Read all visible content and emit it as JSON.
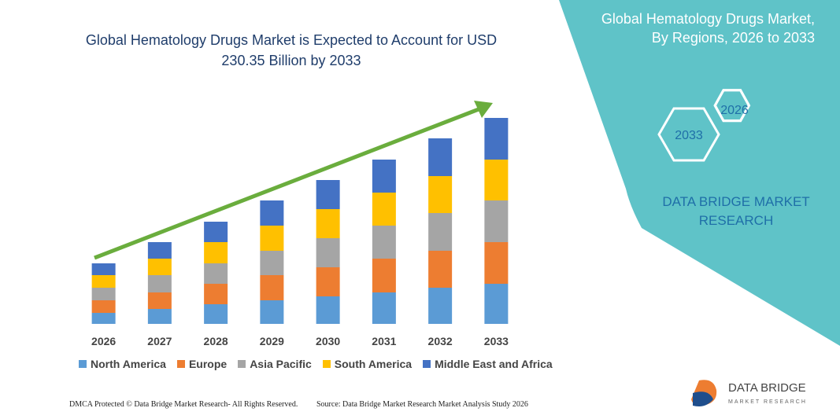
{
  "chart_data": {
    "type": "stacked_bar",
    "title": "Global Hematology Drugs Market is Expected to Account for USD 230.35 Billion by 2033",
    "categories": [
      "2026",
      "2027",
      "2028",
      "2029",
      "2030",
      "2031",
      "2032",
      "2033"
    ],
    "series": [
      {
        "name": "North America",
        "color": "#5b9bd5",
        "values": [
          14,
          19,
          25,
          30,
          35,
          40,
          46,
          51
        ]
      },
      {
        "name": "Europe",
        "color": "#ed7d31",
        "values": [
          16,
          21,
          26,
          32,
          37,
          43,
          47,
          53
        ]
      },
      {
        "name": "Asia Pacific",
        "color": "#a5a5a5",
        "values": [
          16,
          22,
          26,
          31,
          37,
          42,
          48,
          53
        ]
      },
      {
        "name": "South America",
        "color": "#ffc000",
        "values": [
          16,
          21,
          27,
          32,
          37,
          42,
          47,
          52
        ]
      },
      {
        "name": "Middle East and Africa",
        "color": "#4472c4",
        "values": [
          15,
          21,
          26,
          32,
          37,
          42,
          48,
          53
        ]
      }
    ],
    "legend": "bottom"
  },
  "side_panel": {
    "title": "Global Hematology Drugs Market, By Regions, 2026 to 2033",
    "hexagons": [
      "2026",
      "2033"
    ],
    "brand": "DATA BRIDGE MARKET RESEARCH"
  },
  "footer": {
    "left": "DMCA Protected © Data Bridge Market Research- All Rights Reserved.",
    "right": "Source: Data Bridge Market Research Market Analysis Study 2026"
  },
  "logo": {
    "name": "DATA BRIDGE",
    "tagline": "MARKET RESEARCH"
  }
}
